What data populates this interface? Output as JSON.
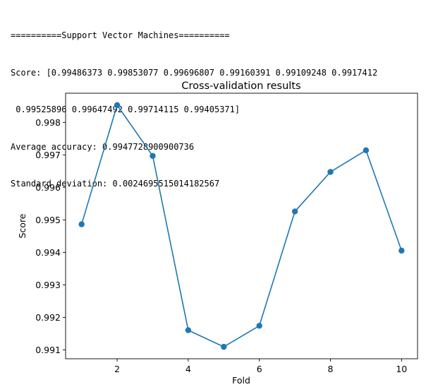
{
  "output": {
    "lines": [
      "==========Support Vector Machines==========",
      "Score: [0.99486373 0.99853077 0.99696807 0.99160391 0.99109248 0.9917412",
      " 0.99525896 0.99647492 0.99714115 0.99405371]",
      "Average accuracy: 0.9947728900900736",
      "Standard deviation: 0.0024695515014182567"
    ]
  },
  "chart_data": {
    "type": "line",
    "title": "Cross-validation results",
    "xlabel": "Fold",
    "ylabel": "Score",
    "x": [
      1,
      2,
      3,
      4,
      5,
      6,
      7,
      8,
      9,
      10
    ],
    "series": [
      {
        "values": [
          0.99486373,
          0.99853077,
          0.99696807,
          0.99160391,
          0.99109248,
          0.9917412,
          0.99525896,
          0.99647492,
          0.99714115,
          0.99405371
        ],
        "color": "#1f77b4",
        "marker": "circle"
      }
    ],
    "xticks": [
      2,
      4,
      6,
      8,
      10
    ],
    "xtick_labels": [
      "2",
      "4",
      "6",
      "8",
      "10"
    ],
    "yticks": [
      0.991,
      0.992,
      0.993,
      0.994,
      0.995,
      0.996,
      0.997,
      0.998
    ],
    "ytick_labels": [
      "0.991",
      "0.992",
      "0.993",
      "0.994",
      "0.995",
      "0.996",
      "0.997",
      "0.998"
    ],
    "xlim": [
      0.55,
      10.45
    ],
    "ylim": [
      0.99072557,
      0.99889768
    ],
    "grid": false
  }
}
